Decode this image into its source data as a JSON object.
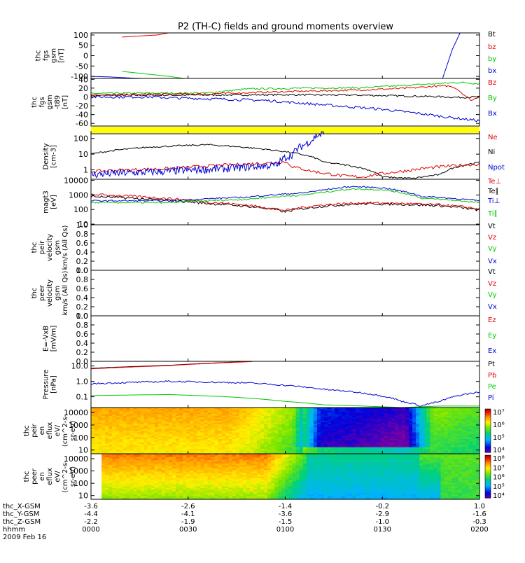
{
  "title": "P2 (TH-C) fields and ground moments overview",
  "colors": {
    "black": "#000000",
    "red": "#e00000",
    "green": "#00c800",
    "blue": "#0000d2",
    "yellow": "#ffff00"
  },
  "x_axis": {
    "rows": [
      {
        "label": "thc_X-GSM",
        "ticks": [
          "-3.6",
          "-2.6",
          "-1.4",
          "-0.2",
          "1.0"
        ]
      },
      {
        "label": "thc_Y-GSM",
        "ticks": [
          "-4.4",
          "-4.1",
          "-3.6",
          "-2.9",
          "-1.6"
        ]
      },
      {
        "label": "thc_Z-GSM",
        "ticks": [
          "-2.2",
          "-1.9",
          "-1.5",
          "-1.0",
          "-0.3"
        ]
      },
      {
        "label": "hhmm",
        "ticks": [
          "0000",
          "0030",
          "0100",
          "0130",
          "0200"
        ]
      }
    ],
    "date": "2009 Feb 16"
  },
  "chart_data": [
    {
      "type": "line",
      "ylabel": [
        "thc",
        "fgs",
        "gsm",
        "[nT]"
      ],
      "ylim": [
        -110,
        110
      ],
      "scale": "linear",
      "yticks": [
        "100",
        "50",
        "0",
        "-50",
        "-100"
      ],
      "legend": [
        {
          "text": "Bt",
          "color": "black"
        },
        {
          "text": "bz",
          "color": "red"
        },
        {
          "text": "by",
          "color": "green"
        },
        {
          "text": "bx",
          "color": "blue"
        }
      ],
      "series": [
        {
          "color": "red",
          "points": [
            [
              0.08,
              90
            ],
            [
              0.17,
              100
            ],
            [
              0.2,
              110
            ]
          ]
        },
        {
          "color": "green",
          "points": [
            [
              0.08,
              -76
            ],
            [
              0.15,
              -90
            ],
            [
              0.2,
              -100
            ],
            [
              0.24,
              -110
            ]
          ]
        },
        {
          "color": "blue",
          "points": [
            [
              0.0,
              -100
            ],
            [
              0.05,
              -103
            ],
            [
              0.1,
              -108
            ],
            [
              0.13,
              -110
            ]
          ]
        },
        {
          "color": "blue",
          "points": [
            [
              0.905,
              -110
            ],
            [
              0.93,
              30
            ],
            [
              0.95,
              110
            ]
          ]
        }
      ]
    },
    {
      "type": "line",
      "ylabel": [
        "thc",
        "fgs",
        "gsm",
        "-t89",
        "[nT]"
      ],
      "ylim": [
        -66,
        42
      ],
      "scale": "linear",
      "yticks": [
        "40",
        "20",
        "0",
        "-20",
        "-40",
        "-60"
      ],
      "legend": [
        {
          "text": "Bz",
          "color": "red"
        },
        {
          "text": "By",
          "color": "green"
        },
        {
          "text": "Bx",
          "color": "blue"
        }
      ],
      "series": [
        {
          "color": "black",
          "points": [
            [
              0.0,
              3
            ],
            [
              0.2,
              4
            ],
            [
              0.5,
              5
            ],
            [
              0.7,
              4
            ],
            [
              0.88,
              1
            ],
            [
              0.95,
              -1
            ],
            [
              1.0,
              0
            ]
          ],
          "noise": 2
        },
        {
          "color": "green",
          "points": [
            [
              0.0,
              8
            ],
            [
              0.3,
              9
            ],
            [
              0.4,
              18
            ],
            [
              0.55,
              20
            ],
            [
              0.7,
              21
            ],
            [
              0.83,
              27
            ],
            [
              0.95,
              33
            ],
            [
              1.0,
              30
            ]
          ],
          "noise": 2
        },
        {
          "color": "red",
          "points": [
            [
              0.0,
              5
            ],
            [
              0.3,
              7
            ],
            [
              0.5,
              12
            ],
            [
              0.7,
              16
            ],
            [
              0.82,
              20
            ],
            [
              0.88,
              24
            ],
            [
              0.92,
              25
            ],
            [
              0.94,
              20
            ],
            [
              0.96,
              5
            ],
            [
              0.98,
              -8
            ],
            [
              1.0,
              2
            ]
          ],
          "noise": 2
        },
        {
          "color": "blue",
          "points": [
            [
              0.0,
              0
            ],
            [
              0.16,
              0
            ],
            [
              0.2,
              -2
            ],
            [
              0.3,
              -4
            ],
            [
              0.45,
              -8
            ],
            [
              0.6,
              -18
            ],
            [
              0.75,
              -28
            ],
            [
              0.85,
              -38
            ],
            [
              0.92,
              -46
            ],
            [
              1.0,
              -54
            ]
          ],
          "noise": 3
        }
      ]
    },
    {
      "type": "band",
      "color": "yellow"
    },
    {
      "type": "line",
      "ylabel": [
        "Density",
        "[cm-3]"
      ],
      "ylim": [
        0.25,
        200
      ],
      "scale": "log",
      "yticks": [
        "100",
        "10",
        "1"
      ],
      "legend": [
        {
          "text": "Ne",
          "color": "red"
        },
        {
          "text": "Ni",
          "color": "black"
        },
        {
          "text": "Npot",
          "color": "blue"
        }
      ],
      "series": [
        {
          "color": "black",
          "points": [
            [
              0.0,
              10
            ],
            [
              0.15,
              28
            ],
            [
              0.3,
              40
            ],
            [
              0.45,
              20
            ],
            [
              0.6,
              3
            ],
            [
              0.75,
              0.35
            ],
            [
              0.83,
              0.28
            ],
            [
              0.9,
              0.5
            ],
            [
              1.0,
              3
            ]
          ],
          "noise": 0.05
        },
        {
          "color": "red",
          "points": [
            [
              0.0,
              0.8
            ],
            [
              0.2,
              1.2
            ],
            [
              0.4,
              2.3
            ],
            [
              0.5,
              3.2
            ],
            [
              0.52,
              1.5
            ],
            [
              0.56,
              0.9
            ],
            [
              0.6,
              0.6
            ],
            [
              0.65,
              0.4
            ],
            [
              0.7,
              0.35
            ],
            [
              0.8,
              0.8
            ],
            [
              1.0,
              2.3
            ]
          ],
          "noise": 0.1
        },
        {
          "color": "blue",
          "points": [
            [
              0.0,
              0.5
            ],
            [
              0.2,
              0.8
            ],
            [
              0.35,
              1.2
            ],
            [
              0.48,
              2
            ],
            [
              0.52,
              10
            ],
            [
              0.55,
              40
            ],
            [
              0.57,
              80
            ],
            [
              0.58,
              150
            ],
            [
              0.6,
              200
            ]
          ],
          "noise": 0.25
        }
      ]
    },
    {
      "type": "line",
      "ylabel": [
        "magt3",
        "[eV]"
      ],
      "ylim": [
        9,
        12000
      ],
      "scale": "log",
      "yticks": [
        "10000",
        "1000",
        "100",
        "10"
      ],
      "legend": [
        {
          "text": "Te⊥",
          "color": "red"
        },
        {
          "text": "Te∥",
          "color": "black"
        },
        {
          "text": "Ti⊥",
          "color": "blue"
        },
        {
          "text": "Ti∥",
          "color": "green"
        }
      ],
      "series": [
        {
          "color": "black",
          "points": [
            [
              0.0,
              800
            ],
            [
              0.15,
              500
            ],
            [
              0.3,
              260
            ],
            [
              0.45,
              120
            ],
            [
              0.5,
              70
            ],
            [
              0.6,
              170
            ],
            [
              0.7,
              250
            ],
            [
              0.8,
              230
            ],
            [
              0.9,
              180
            ],
            [
              1.0,
              90
            ]
          ],
          "noise": 0.08
        },
        {
          "color": "red",
          "points": [
            [
              0.0,
              1100
            ],
            [
              0.15,
              700
            ],
            [
              0.3,
              320
            ],
            [
              0.45,
              140
            ],
            [
              0.5,
              85
            ],
            [
              0.6,
              210
            ],
            [
              0.7,
              290
            ],
            [
              0.8,
              260
            ],
            [
              0.9,
              210
            ],
            [
              1.0,
              110
            ]
          ],
          "noise": 0.08
        },
        {
          "color": "green",
          "points": [
            [
              0.0,
              300
            ],
            [
              0.2,
              300
            ],
            [
              0.4,
              500
            ],
            [
              0.55,
              1000
            ],
            [
              0.62,
              1800
            ],
            [
              0.67,
              2600
            ],
            [
              0.75,
              2300
            ],
            [
              0.8,
              1400
            ],
            [
              0.85,
              600
            ],
            [
              1.0,
              300
            ]
          ],
          "noise": 0.05
        },
        {
          "color": "blue",
          "points": [
            [
              0.0,
              400
            ],
            [
              0.2,
              400
            ],
            [
              0.4,
              700
            ],
            [
              0.55,
              1400
            ],
            [
              0.62,
              2600
            ],
            [
              0.67,
              3800
            ],
            [
              0.75,
              3100
            ],
            [
              0.8,
              1800
            ],
            [
              0.85,
              800
            ],
            [
              1.0,
              400
            ]
          ],
          "noise": 0.05
        }
      ]
    },
    {
      "type": "line",
      "ylabel": [
        "thc",
        "peir",
        "velocity",
        "gsm",
        "km/s (All Qs)"
      ],
      "ylim": [
        0,
        1
      ],
      "scale": "linear",
      "yticks": [
        "1.0",
        "0.8",
        "0.6",
        "0.4",
        "0.2",
        "0.0"
      ],
      "legend": [
        {
          "text": "Vt",
          "color": "black"
        },
        {
          "text": "Vz",
          "color": "red"
        },
        {
          "text": "Vy",
          "color": "green"
        },
        {
          "text": "Vx",
          "color": "blue"
        }
      ],
      "series": []
    },
    {
      "type": "line",
      "ylabel": [
        "thc",
        "peer",
        "velocity",
        "gsm",
        "km/s (All Qs)"
      ],
      "ylim": [
        0,
        1
      ],
      "scale": "linear",
      "yticks": [
        "1.0",
        "0.8",
        "0.6",
        "0.4",
        "0.2",
        "0.0"
      ],
      "legend": [
        {
          "text": "Vt",
          "color": "black"
        },
        {
          "text": "Vz",
          "color": "red"
        },
        {
          "text": "Vy",
          "color": "green"
        },
        {
          "text": "Vx",
          "color": "blue"
        }
      ],
      "series": []
    },
    {
      "type": "line",
      "ylabel": [
        "E=-VxB",
        "[mV/m]"
      ],
      "ylim": [
        0,
        1
      ],
      "scale": "linear",
      "yticks": [
        "1.0",
        "0.8",
        "0.6",
        "0.4",
        "0.2",
        "0.0"
      ],
      "legend": [
        {
          "text": "Ez",
          "color": "red"
        },
        {
          "text": "Ey",
          "color": "green"
        },
        {
          "text": "Ex",
          "color": "blue"
        }
      ],
      "series": []
    },
    {
      "type": "line",
      "ylabel": [
        "Pressure",
        "[nPa]"
      ],
      "ylim": [
        0.02,
        20
      ],
      "scale": "log",
      "yticks": [
        "10.0",
        "1.0",
        "0.1"
      ],
      "legend": [
        {
          "text": "Pt",
          "color": "black"
        },
        {
          "text": "Pb",
          "color": "red"
        },
        {
          "text": "Pe",
          "color": "green"
        },
        {
          "text": "Pi",
          "color": "blue"
        }
      ],
      "series": [
        {
          "color": "black",
          "points": [
            [
              0.0,
              7
            ],
            [
              0.2,
              11
            ],
            [
              0.4,
              19
            ],
            [
              0.42,
              20
            ]
          ]
        },
        {
          "color": "red",
          "points": [
            [
              0.0,
              6.5
            ],
            [
              0.2,
              10.5
            ],
            [
              0.4,
              18.5
            ],
            [
              0.42,
              20
            ]
          ]
        },
        {
          "color": "blue",
          "points": [
            [
              0.0,
              0.7
            ],
            [
              0.2,
              1.0
            ],
            [
              0.4,
              0.8
            ],
            [
              0.6,
              0.3
            ],
            [
              0.8,
              0.05
            ],
            [
              0.85,
              0.025
            ],
            [
              0.9,
              0.05
            ],
            [
              1.0,
              0.2
            ]
          ],
          "noise": 0.05
        },
        {
          "color": "green",
          "points": [
            [
              0.0,
              0.12
            ],
            [
              0.2,
              0.14
            ],
            [
              0.35,
              0.1
            ],
            [
              0.5,
              0.05
            ],
            [
              0.6,
              0.03
            ],
            [
              0.7,
              0.025
            ],
            [
              0.8,
              0.02
            ],
            [
              0.9,
              0.025
            ],
            [
              1.0,
              0.025
            ]
          ]
        }
      ]
    },
    {
      "type": "heatmap",
      "ylabel": [
        "thc",
        "peir",
        "en",
        "eflux",
        "eV/",
        "(cm^2-s-",
        "sr-eV)"
      ],
      "ylim": [
        5,
        25000
      ],
      "scale": "log",
      "yticks": [
        "10000",
        "1000",
        "100",
        "10"
      ],
      "colorbar": {
        "labels": [
          "10⁷",
          "10⁶",
          "10⁵",
          "10⁴"
        ]
      }
    },
    {
      "type": "heatmap",
      "ylabel": [
        "thc",
        "peer",
        "en",
        "eflux",
        "eV/",
        "(cm^2-s-",
        "sr-eV)"
      ],
      "ylim": [
        5,
        25000
      ],
      "scale": "log",
      "yticks": [
        "10000",
        "1000",
        "100",
        "10"
      ],
      "colorbar": {
        "labels": [
          "10⁸",
          "10⁷",
          "10⁶",
          "10⁵",
          "10⁴"
        ]
      }
    }
  ]
}
